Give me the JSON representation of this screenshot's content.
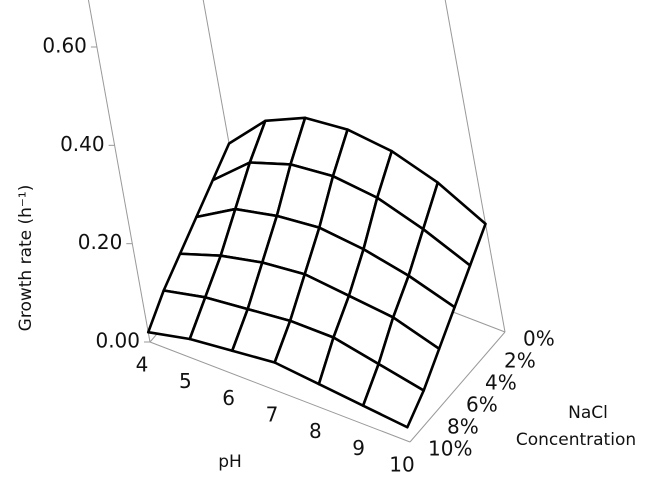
{
  "chart_data": {
    "type": "surface",
    "x_label": "pH",
    "y_label": [
      "NaCl",
      "Concentration"
    ],
    "z_label": "Growth rate (h⁻¹)",
    "x": [
      4,
      5,
      6,
      7,
      8,
      9,
      10
    ],
    "y": [
      "0%",
      "2%",
      "4%",
      "6%",
      "8%",
      "10%"
    ],
    "z": [
      [
        0.18,
        0.15,
        0.12,
        0.09,
        0.06,
        0.02
      ],
      [
        0.26,
        0.22,
        0.17,
        0.12,
        0.08,
        0.04
      ],
      [
        0.3,
        0.25,
        0.19,
        0.14,
        0.09,
        0.05
      ],
      [
        0.31,
        0.26,
        0.2,
        0.15,
        0.1,
        0.06
      ],
      [
        0.3,
        0.25,
        0.19,
        0.14,
        0.1,
        0.05
      ],
      [
        0.27,
        0.22,
        0.17,
        0.13,
        0.08,
        0.04
      ],
      [
        0.22,
        0.18,
        0.14,
        0.1,
        0.06,
        0.03
      ]
    ],
    "zlim": [
      0,
      0.6
    ],
    "zticks": [
      {
        "value": 0,
        "label": "0.00"
      },
      {
        "value": 0.2,
        "label": "0.20"
      },
      {
        "value": 0.4,
        "label": "0.40"
      },
      {
        "value": 0.6,
        "label": "0.60"
      }
    ],
    "color": "#000000"
  }
}
